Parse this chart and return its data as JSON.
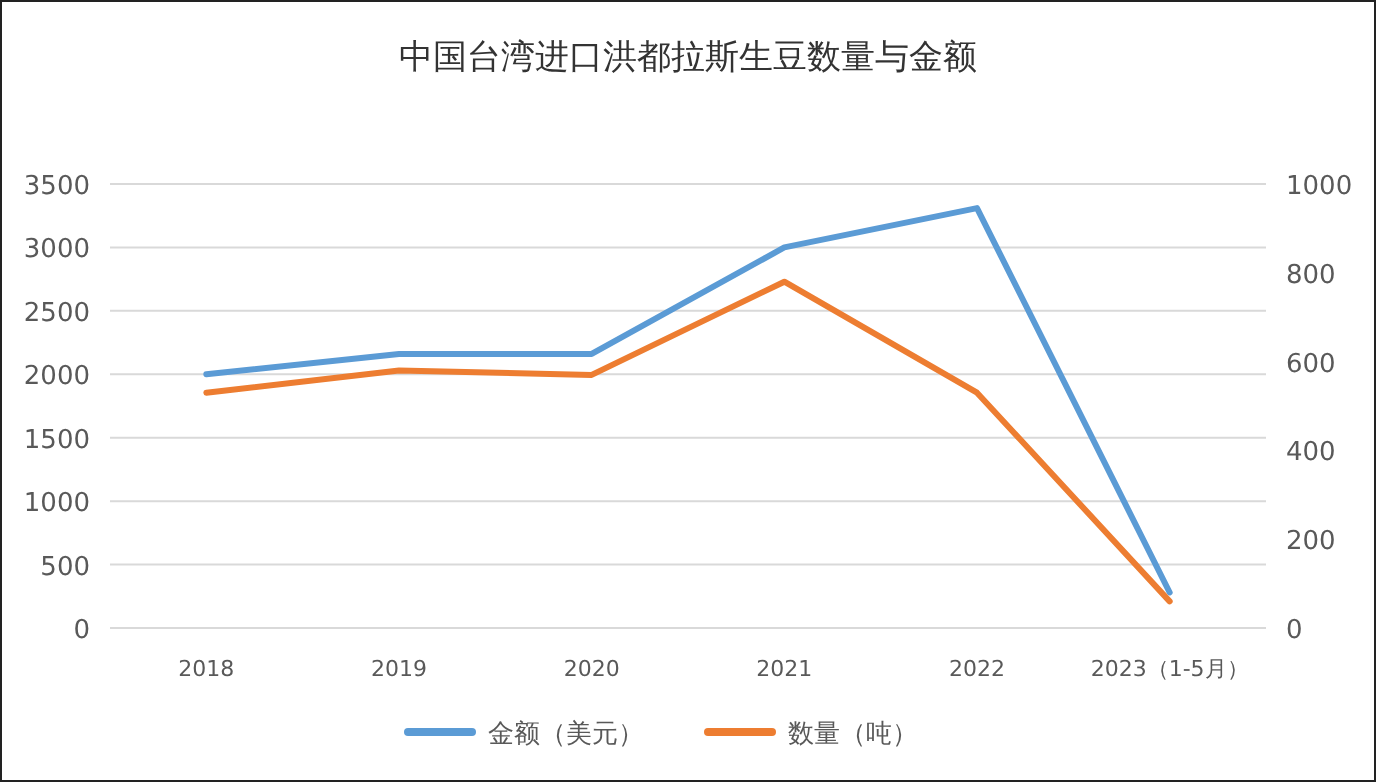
{
  "chart_data": {
    "type": "line",
    "title": "中国台湾进口洪都拉斯生豆数量与金额",
    "categories": [
      "2018",
      "2019",
      "2020",
      "2021",
      "2022",
      "2023（1-5月）"
    ],
    "series": [
      {
        "name": "金额（美元）",
        "color": "#5b9bd5",
        "values": [
          2000,
          2160,
          2160,
          3000,
          3310,
          280
        ]
      },
      {
        "name": "数量（吨）",
        "color": "#ed7d31",
        "values": [
          530,
          580,
          570,
          780,
          530,
          60
        ],
        "axis": "y2"
      }
    ],
    "ylim": [
      0,
      3500
    ],
    "yticks": [
      0,
      500,
      1000,
      1500,
      2000,
      2500,
      3000,
      3500
    ],
    "y2lim": [
      0,
      1000
    ],
    "y2ticks": [
      0,
      200,
      400,
      600,
      800,
      1000
    ],
    "grid": "y",
    "legend": "bottom",
    "marker": "none",
    "line_style": "solid"
  }
}
